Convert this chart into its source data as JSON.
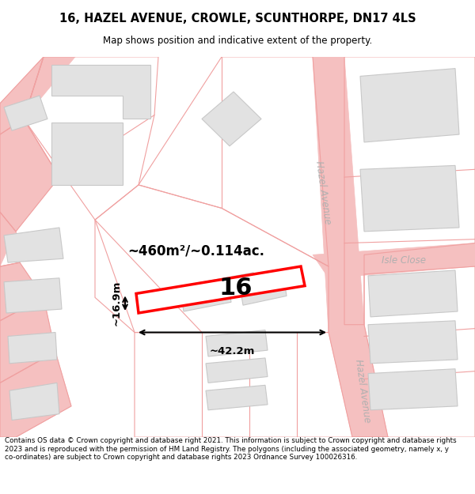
{
  "title": "16, HAZEL AVENUE, CROWLE, SCUNTHORPE, DN17 4LS",
  "subtitle": "Map shows position and indicative extent of the property.",
  "footer": "Contains OS data © Crown copyright and database right 2021. This information is subject to Crown copyright and database rights 2023 and is reproduced with the permission of HM Land Registry. The polygons (including the associated geometry, namely x, y co-ordinates) are subject to Crown copyright and database rights 2023 Ordnance Survey 100026316.",
  "bg_color": "#ffffff",
  "road_color": "#f5c0c0",
  "parcel_outline": "#f0a0a0",
  "building_fill": "#e2e2e2",
  "building_outline": "#c8c8c8",
  "area_text": "~460m²/~0.114ac.",
  "width_text": "~42.2m",
  "height_text": "~16.9m",
  "plot_label": "16",
  "road_label_top": "Hazel Avenue",
  "road_label_bot": "Hazel Avenue",
  "road_label_side": "Isle Close"
}
